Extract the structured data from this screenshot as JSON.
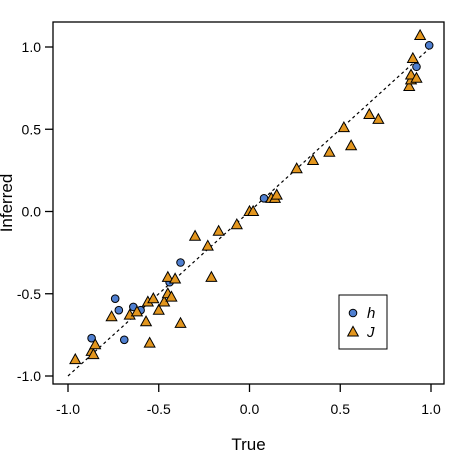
{
  "chart_data": {
    "type": "scatter",
    "title": "",
    "xlabel": "True",
    "ylabel": "Inferred",
    "xlim": [
      -1.0,
      1.0
    ],
    "ylim": [
      -1.0,
      1.0
    ],
    "xticks": [
      "-1.0",
      "-0.5",
      "0.0",
      "0.5",
      "1.0"
    ],
    "yticks": [
      "-1.0",
      "-0.5",
      "0.0",
      "0.5",
      "1.0"
    ],
    "grid": false,
    "reference_line": "y = x (dashed)",
    "legend_position": "bottom-right",
    "series": [
      {
        "name": "h",
        "marker": "circle",
        "color": "#4f7fd0",
        "points": [
          [
            -0.87,
            -0.77
          ],
          [
            -0.74,
            -0.53
          ],
          [
            -0.72,
            -0.6
          ],
          [
            -0.69,
            -0.78
          ],
          [
            -0.64,
            -0.58
          ],
          [
            -0.6,
            -0.6
          ],
          [
            -0.44,
            -0.43
          ],
          [
            -0.38,
            -0.31
          ],
          [
            0.08,
            0.08
          ],
          [
            0.92,
            0.88
          ],
          [
            0.99,
            1.01
          ]
        ]
      },
      {
        "name": "J",
        "marker": "triangle",
        "color": "#e3961e",
        "points": [
          [
            -0.96,
            -0.9
          ],
          [
            -0.87,
            -0.85
          ],
          [
            -0.86,
            -0.87
          ],
          [
            -0.85,
            -0.81
          ],
          [
            -0.76,
            -0.64
          ],
          [
            -0.66,
            -0.63
          ],
          [
            -0.62,
            -0.61
          ],
          [
            -0.57,
            -0.67
          ],
          [
            -0.56,
            -0.55
          ],
          [
            -0.55,
            -0.8
          ],
          [
            -0.53,
            -0.53
          ],
          [
            -0.5,
            -0.6
          ],
          [
            -0.47,
            -0.55
          ],
          [
            -0.45,
            -0.5
          ],
          [
            -0.45,
            -0.4
          ],
          [
            -0.43,
            -0.52
          ],
          [
            -0.41,
            -0.41
          ],
          [
            -0.38,
            -0.68
          ],
          [
            -0.3,
            -0.15
          ],
          [
            -0.23,
            -0.21
          ],
          [
            -0.21,
            -0.4
          ],
          [
            -0.17,
            -0.12
          ],
          [
            -0.07,
            -0.08
          ],
          [
            0.0,
            0.0
          ],
          [
            0.02,
            0.0
          ],
          [
            0.12,
            0.08
          ],
          [
            0.14,
            0.08
          ],
          [
            0.15,
            0.1
          ],
          [
            0.26,
            0.26
          ],
          [
            0.35,
            0.31
          ],
          [
            0.44,
            0.36
          ],
          [
            0.52,
            0.51
          ],
          [
            0.56,
            0.4
          ],
          [
            0.66,
            0.59
          ],
          [
            0.71,
            0.56
          ],
          [
            0.88,
            0.76
          ],
          [
            0.89,
            0.8
          ],
          [
            0.89,
            0.83
          ],
          [
            0.9,
            0.93
          ],
          [
            0.92,
            0.81
          ],
          [
            0.94,
            1.07
          ]
        ]
      }
    ]
  }
}
